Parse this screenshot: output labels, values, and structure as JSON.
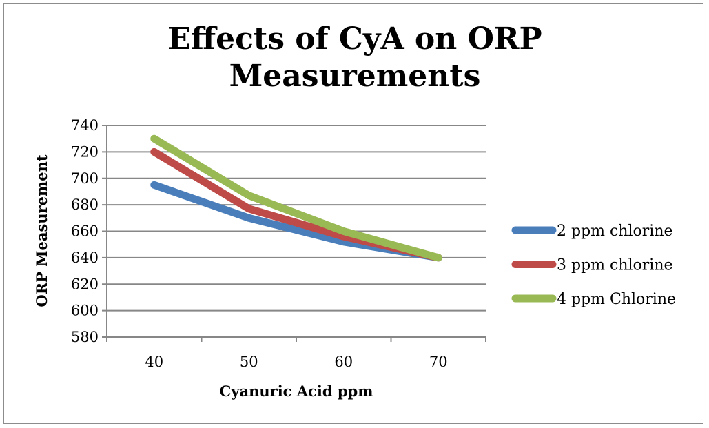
{
  "chart_data": {
    "type": "line",
    "title": "Effects of CyA on ORP Measurements",
    "xlabel": "Cyanuric Acid ppm",
    "ylabel": "ORP Measurement",
    "categories": [
      "40",
      "50",
      "60",
      "70"
    ],
    "ylim": [
      580,
      740
    ],
    "yticks": [
      "580",
      "600",
      "620",
      "640",
      "660",
      "680",
      "700",
      "720",
      "740"
    ],
    "grid": true,
    "legend_position": "right",
    "series": [
      {
        "name": "2 ppm chlorine",
        "values": [
          695,
          670,
          652,
          640
        ],
        "color": "#4a7ebb"
      },
      {
        "name": "3 ppm chlorine",
        "values": [
          720,
          677,
          656,
          640
        ],
        "color": "#be4b48"
      },
      {
        "name": "4 ppm Chlorine",
        "values": [
          730,
          687,
          660,
          640
        ],
        "color": "#98b954"
      }
    ]
  }
}
